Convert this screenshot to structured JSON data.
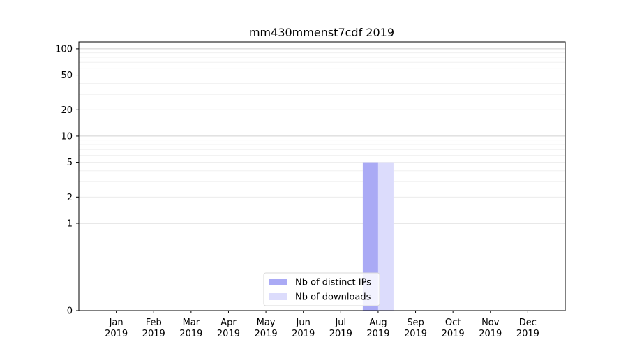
{
  "chart_data": {
    "type": "bar",
    "title": "mm430mmenst7cdf 2019",
    "xlabel": "",
    "ylabel": "",
    "y_scale": "symlog",
    "ylim": [
      0,
      120
    ],
    "y_ticks": [
      0,
      1,
      2,
      5,
      10,
      20,
      50,
      100
    ],
    "y_tick_labels": [
      "0",
      "1",
      "2",
      "5",
      "10",
      "20",
      "50",
      "100"
    ],
    "categories": [
      {
        "month": "Jan",
        "year": "2019"
      },
      {
        "month": "Feb",
        "year": "2019"
      },
      {
        "month": "Mar",
        "year": "2019"
      },
      {
        "month": "Apr",
        "year": "2019"
      },
      {
        "month": "May",
        "year": "2019"
      },
      {
        "month": "Jun",
        "year": "2019"
      },
      {
        "month": "Jul",
        "year": "2019"
      },
      {
        "month": "Aug",
        "year": "2019"
      },
      {
        "month": "Sep",
        "year": "2019"
      },
      {
        "month": "Oct",
        "year": "2019"
      },
      {
        "month": "Nov",
        "year": "2019"
      },
      {
        "month": "Dec",
        "year": "2019"
      }
    ],
    "series": [
      {
        "name": "Nb of distinct IPs",
        "color": "#aaaaf5",
        "values": [
          0,
          0,
          0,
          0,
          0,
          0,
          0,
          5,
          0,
          0,
          0,
          0
        ]
      },
      {
        "name": "Nb of downloads",
        "color": "#dcdcfc",
        "values": [
          0,
          0,
          0,
          0,
          0,
          0,
          0,
          5,
          0,
          0,
          0,
          0
        ]
      }
    ],
    "grid": true,
    "legend_position": "bottom-center"
  }
}
